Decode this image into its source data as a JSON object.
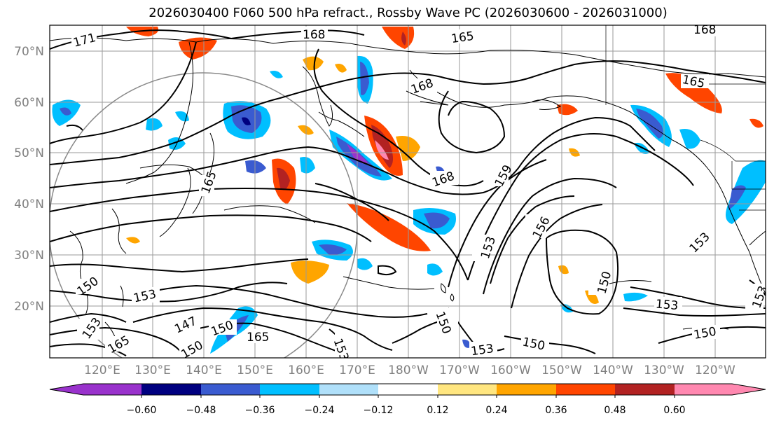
{
  "title": "2026030400 F060 500 hPa refract., Rossby Wave PC (2026030600 - 2026031000)",
  "lat_labels": [
    "70°N",
    "60°N",
    "50°N",
    "40°N",
    "30°N",
    "20°N"
  ],
  "lon_labels": [
    "120°E",
    "130°E",
    "140°E",
    "150°E",
    "160°E",
    "170°E",
    "180°W",
    "170°W",
    "160°W",
    "150°W",
    "140°W",
    "130°W",
    "120°W"
  ],
  "colorbar": {
    "colors": [
      "#9932cc",
      "#000080",
      "#3a5bd0",
      "#00bfff",
      "#b0e0fa",
      "#ffffff",
      "#ffe680",
      "#ffa500",
      "#ff4500",
      "#b22222",
      "#ff88b0"
    ],
    "tick_labels": [
      "−0.60",
      "−0.48",
      "−0.36",
      "−0.24",
      "−0.12",
      "0.12",
      "0.24",
      "0.36",
      "0.48",
      "0.60"
    ]
  },
  "contour_labels": [
    "171",
    "168",
    "165",
    "168",
    "165",
    "168",
    "165",
    "168",
    "159",
    "156",
    "153",
    "153",
    "150",
    "153",
    "150",
    "153",
    "150",
    "150",
    "153",
    "147",
    "150",
    "165",
    "153",
    "150",
    "153",
    "153",
    "150",
    "165"
  ]
}
